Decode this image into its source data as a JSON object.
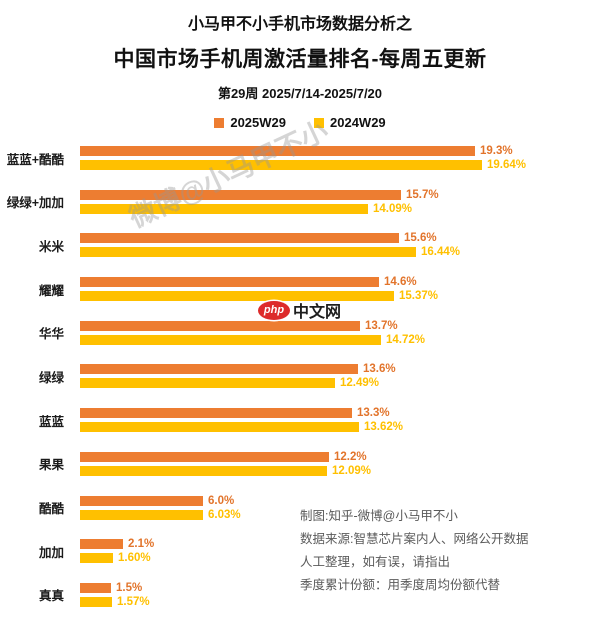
{
  "header": {
    "kicker": "小马甲不小手机市场数据分析之",
    "title": "中国市场手机周激活量排名-每周五更新",
    "week": "第29周 2025/7/14-2025/7/20"
  },
  "legend": [
    {
      "label": "2025W29",
      "color": "#ED7D31"
    },
    {
      "label": "2024W29",
      "color": "#FFC000"
    }
  ],
  "chart_data": {
    "type": "bar",
    "orientation": "horizontal",
    "title": "中国市场手机周激活量排名-每周五更新",
    "subtitle": "第29周 2025/7/14-2025/7/20",
    "xlabel": "",
    "ylabel": "",
    "xlim": [
      0,
      24
    ],
    "grid": false,
    "legend_position": "top",
    "categories": [
      "蓝蓝+酷酷",
      "绿绿+加加",
      "米米",
      "耀耀",
      "华华",
      "绿绿",
      "蓝蓝",
      "果果",
      "酷酷",
      "加加",
      "真真"
    ],
    "series": [
      {
        "name": "2025W29",
        "color": "#ED7D31",
        "label_color": "#E2742B",
        "values": [
          19.3,
          15.7,
          15.6,
          14.6,
          13.7,
          13.6,
          13.3,
          12.2,
          6.0,
          2.1,
          1.5
        ],
        "labels": [
          "19.3%",
          "15.7%",
          "15.6%",
          "14.6%",
          "13.7%",
          "13.6%",
          "13.3%",
          "12.2%",
          "6.0%",
          "2.1%",
          "1.5%"
        ]
      },
      {
        "name": "2024W29",
        "color": "#FFC000",
        "label_color": "#FFC000",
        "values": [
          19.64,
          14.09,
          16.44,
          15.37,
          14.72,
          12.49,
          13.62,
          12.09,
          6.03,
          1.6,
          1.57
        ],
        "labels": [
          "19.64%",
          "14.09%",
          "16.44%",
          "15.37%",
          "14.72%",
          "12.49%",
          "13.62%",
          "12.09%",
          "6.03%",
          "1.60%",
          "1.57%"
        ]
      }
    ]
  },
  "watermark": "微博@小马甲不小",
  "logo": {
    "badge": "php",
    "text": "中文网"
  },
  "notes": [
    "制图:知乎-微博@小马甲不小",
    "数据来源:智慧芯片案内人、网络公开数据",
    "人工整理，如有误，请指出",
    "季度累计份额：用季度周均份额代替"
  ]
}
